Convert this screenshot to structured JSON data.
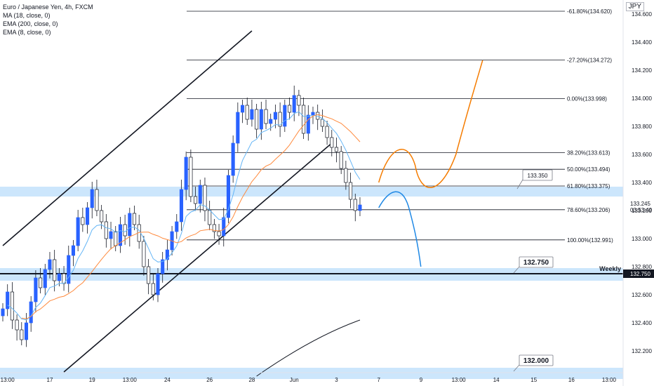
{
  "legend": {
    "symbol_line": "Euro / Japanese Yen, 4h, FXCM",
    "ind1": "MA (18, close, 0)",
    "ind2": "EMA (200, close, 0)",
    "ind3": "EMA (8, close, 0)"
  },
  "axis": {
    "currency": "JPY",
    "last_price": "133.245",
    "countdown": "03:53:49",
    "weekly_label": "Weekly",
    "weekly_price": "132.750"
  },
  "colors": {
    "bull": "#2962ff",
    "bear": "#131722",
    "zone": "#bbdefb",
    "orange": "#f57c00",
    "blue_path": "#1e88e5",
    "ma18": "#64b5f6",
    "ema200": "#131722",
    "ema8": "#ff8a3d"
  },
  "chart_data": {
    "type": "candlestick",
    "title": "Euro / Japanese Yen, 4h, FXCM",
    "y_range": [
      132.05,
      134.66
    ],
    "y_ticks": [
      132.2,
      132.4,
      132.6,
      132.8,
      133.0,
      133.2,
      133.4,
      133.6,
      133.8,
      134.0,
      134.2,
      134.4,
      134.6
    ],
    "y_tick_labels": [
      "132.200",
      "132.400",
      "132.600",
      "132.800",
      "133.000",
      "133.200",
      "133.400",
      "133.600",
      "133.800",
      "134.000",
      "134.200",
      "134.400",
      "134.600"
    ],
    "x_ticks": [
      {
        "label": "13:00",
        "bar": 1
      },
      {
        "label": "17",
        "bar": 10
      },
      {
        "label": "19",
        "bar": 19
      },
      {
        "label": "13:00",
        "bar": 27
      },
      {
        "label": "24",
        "bar": 35
      },
      {
        "label": "26",
        "bar": 44
      },
      {
        "label": "28",
        "bar": 53
      },
      {
        "label": "Jun",
        "bar": 62
      },
      {
        "label": "3",
        "bar": 71
      },
      {
        "label": "7",
        "bar": 80
      },
      {
        "label": "9",
        "bar": 89
      },
      {
        "label": "13:00",
        "bar": 97
      },
      {
        "label": "14",
        "bar": 105
      },
      {
        "label": "15",
        "bar": 113
      },
      {
        "label": "16",
        "bar": 121
      },
      {
        "label": "13:00",
        "bar": 129
      }
    ],
    "bars_total": 132,
    "closes": [
      132.5,
      132.62,
      132.42,
      132.35,
      132.28,
      132.4,
      132.55,
      132.72,
      132.65,
      132.78,
      132.85,
      132.7,
      132.75,
      132.68,
      132.88,
      132.95,
      133.15,
      133.1,
      133.22,
      133.35,
      133.2,
      133.12,
      133.0,
      133.05,
      132.95,
      133.1,
      133.02,
      133.18,
      133.1,
      132.98,
      132.8,
      132.68,
      132.6,
      132.75,
      132.85,
      132.92,
      133.05,
      133.12,
      133.35,
      133.58,
      133.3,
      133.25,
      133.38,
      133.2,
      133.1,
      133.05,
      133.02,
      133.15,
      133.45,
      133.68,
      133.9,
      133.95,
      133.85,
      133.92,
      133.78,
      133.92,
      133.82,
      133.85,
      133.9,
      133.8,
      133.95,
      133.9,
      134.02,
      133.95,
      133.75,
      133.88,
      133.9,
      133.85,
      133.8,
      133.72,
      133.65,
      133.62,
      133.5,
      133.4,
      133.28,
      133.2,
      133.24
    ],
    "fib_levels": [
      {
        "label": "-61.80%(134.620)",
        "price": 134.62
      },
      {
        "label": "-27.20%(134.272)",
        "price": 134.272
      },
      {
        "label": "0.00%(133.998)",
        "price": 133.998
      },
      {
        "label": "38.20%(133.613)",
        "price": 133.613
      },
      {
        "label": "50.00%(133.494)",
        "price": 133.494
      },
      {
        "label": "61.80%(133.375)",
        "price": 133.375
      },
      {
        "label": "78.60%(133.206)",
        "price": 133.206
      },
      {
        "label": "100.00%(132.991)",
        "price": 132.991
      }
    ],
    "zones": [
      {
        "from": 133.3,
        "to": 133.37
      },
      {
        "from": 132.7,
        "to": 132.79
      },
      {
        "from": 132.0,
        "to": 132.08
      }
    ],
    "weekly_level": 132.75,
    "price_callouts": [
      {
        "label": "133.350",
        "price": 133.35
      },
      {
        "label": "132.750",
        "price": 132.75
      },
      {
        "label": "132.000",
        "price": 132.05
      }
    ]
  }
}
